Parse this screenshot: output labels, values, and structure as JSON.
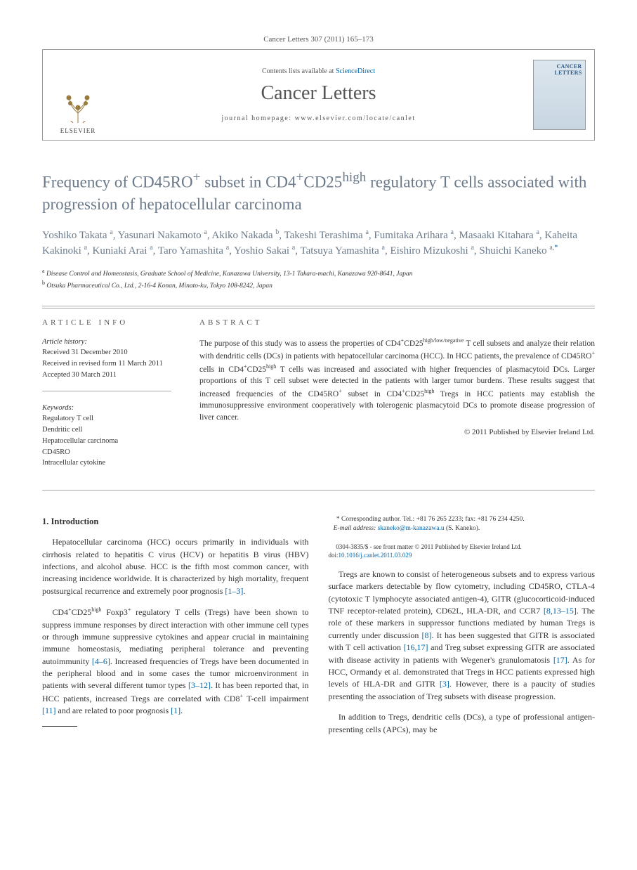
{
  "header_citation": "Cancer Letters 307 (2011) 165–173",
  "masthead": {
    "publisher": "ELSEVIER",
    "contents_prefix": "Contents lists available at ",
    "contents_link": "ScienceDirect",
    "journal": "Cancer Letters",
    "homepage_prefix": "journal homepage: ",
    "homepage": "www.elsevier.com/locate/canlet",
    "cover_label": "CANCER LETTERS"
  },
  "title_html": "Frequency of CD45RO<sup>+</sup> subset in CD4<sup>+</sup>CD25<sup>high</sup> regulatory T cells associated with progression of hepatocellular carcinoma",
  "authors_html": "Yoshiko Takata <sup>a</sup>, Yasunari Nakamoto <sup>a</sup>, Akiko Nakada <sup>b</sup>, Takeshi Terashima <sup>a</sup>, Fumitaka Arihara <sup>a</sup>, Masaaki Kitahara <sup>a</sup>, Kaheita Kakinoki <sup>a</sup>, Kuniaki Arai <sup>a</sup>, Taro Yamashita <sup>a</sup>, Yoshio Sakai <sup>a</sup>, Tatsuya Yamashita <sup>a</sup>, Eishiro Mizukoshi <sup>a</sup>, Shuichi Kaneko <sup>a,<span class=\"corr\">*</span></sup>",
  "affiliations": [
    "<sup>a</sup> Disease Control and Homeostasis, Graduate School of Medicine, Kanazawa University, 13-1 Takara-machi, Kanazawa 920-8641, Japan",
    "<sup>b</sup> Otsuka Pharmaceutical Co., Ltd., 2-16-4 Konan, Minato-ku, Tokyo 108-8242, Japan"
  ],
  "info": {
    "heading": "article info",
    "history_title": "Article history:",
    "history": [
      "Received 31 December 2010",
      "Received in revised form 11 March 2011",
      "Accepted 30 March 2011"
    ],
    "keywords_title": "Keywords:",
    "keywords": [
      "Regulatory T cell",
      "Dendritic cell",
      "Hepatocellular carcinoma",
      "CD45RO",
      "Intracellular cytokine"
    ]
  },
  "abstract": {
    "heading": "abstract",
    "text_html": "The purpose of this study was to assess the properties of CD4<sup>+</sup>CD25<sup>high/low/negative</sup> T cell subsets and analyze their relation with dendritic cells (DCs) in patients with hepatocellular carcinoma (HCC). In HCC patients, the prevalence of CD45RO<sup>+</sup> cells in CD4<sup>+</sup>CD25<sup>high</sup> T cells was increased and associated with higher frequencies of plasmacytoid DCs. Larger proportions of this T cell subset were detected in the patients with larger tumor burdens. These results suggest that increased frequencies of the CD45RO<sup>+</sup> subset in CD4<sup>+</sup>CD25<sup>high</sup> Tregs in HCC patients may establish the immunosuppressive environment cooperatively with tolerogenic plasmacytoid DCs to promote disease progression of liver cancer.",
    "copyright": "© 2011 Published by Elsevier Ireland Ltd."
  },
  "body": {
    "section_heading": "1. Introduction",
    "p1_html": "Hepatocellular carcinoma (HCC) occurs primarily in individuals with cirrhosis related to hepatitis C virus (HCV) or hepatitis B virus (HBV) infections, and alcohol abuse. HCC is the fifth most common cancer, with increasing incidence worldwide. It is characterized by high mortality, frequent postsurgical recurrence and extremely poor prognosis <a class=\"ref\" href=\"#\">[1–3]</a>.",
    "p2_html": "CD4<sup>+</sup>CD25<sup>high</sup> Foxp3<sup>+</sup> regulatory T cells (Tregs) have been shown to suppress immune responses by direct interaction with other immune cell types or through immune suppressive cytokines and appear crucial in maintaining immune homeostasis, mediating peripheral tolerance and preventing autoimmunity <a class=\"ref\" href=\"#\">[4–6]</a>. Increased frequencies of Tregs have been documented in the peripheral blood and in some cases the tumor microenvironment in patients with several different tumor types <a class=\"ref\" href=\"#\">[3–12]</a>. It has been reported that, in HCC patients, increased Tregs are correlated with CD8<sup>+</sup> T-cell impairment <a class=\"ref\" href=\"#\">[11]</a> and are related to poor prognosis <a class=\"ref\" href=\"#\">[1]</a>.",
    "p3_html": "Tregs are known to consist of heterogeneous subsets and to express various surface markers detectable by flow cytometry, including CD45RO, CTLA-4 (cytotoxic T lymphocyte associated antigen-4), GITR (glucocorticoid-induced TNF receptor-related protein), CD62L, HLA-DR, and CCR7 <a class=\"ref\" href=\"#\">[8,13–15]</a>. The role of these markers in suppressor functions mediated by human Tregs is currently under discussion <a class=\"ref\" href=\"#\">[8]</a>. It has been suggested that GITR is associated with T cell activation <a class=\"ref\" href=\"#\">[16,17]</a> and Treg subset expressing GITR are associated with disease activity in patients with Wegener's granulomatosis <a class=\"ref\" href=\"#\">[17]</a>. As for HCC, Ormandy et al. demonstrated that Tregs in HCC patients expressed high levels of HLA-DR and GITR <a class=\"ref\" href=\"#\">[3]</a>. However, there is a paucity of studies presenting the association of Treg subsets with disease progression.",
    "p4_html": "In addition to Tregs, dendritic cells (DCs), a type of professional antigen-presenting cells (APCs), may be"
  },
  "footnote": {
    "corr_html": "* Corresponding author. Tel.: +81 76 265 2233; fax: +81 76 234 4250.",
    "email_label": "E-mail address:",
    "email": "skaneko@m-kanazawa.u",
    "email_suffix": "(S. Kaneko)."
  },
  "footer": {
    "line1": "0304-3835/$ - see front matter © 2011 Published by Elsevier Ireland Ltd.",
    "doi_label": "doi:",
    "doi": "10.1016/j.canlet.2011.03.029"
  },
  "colors": {
    "link": "#0066aa",
    "heading_grey": "#6b7a8a",
    "rule": "#aaaaaa"
  }
}
